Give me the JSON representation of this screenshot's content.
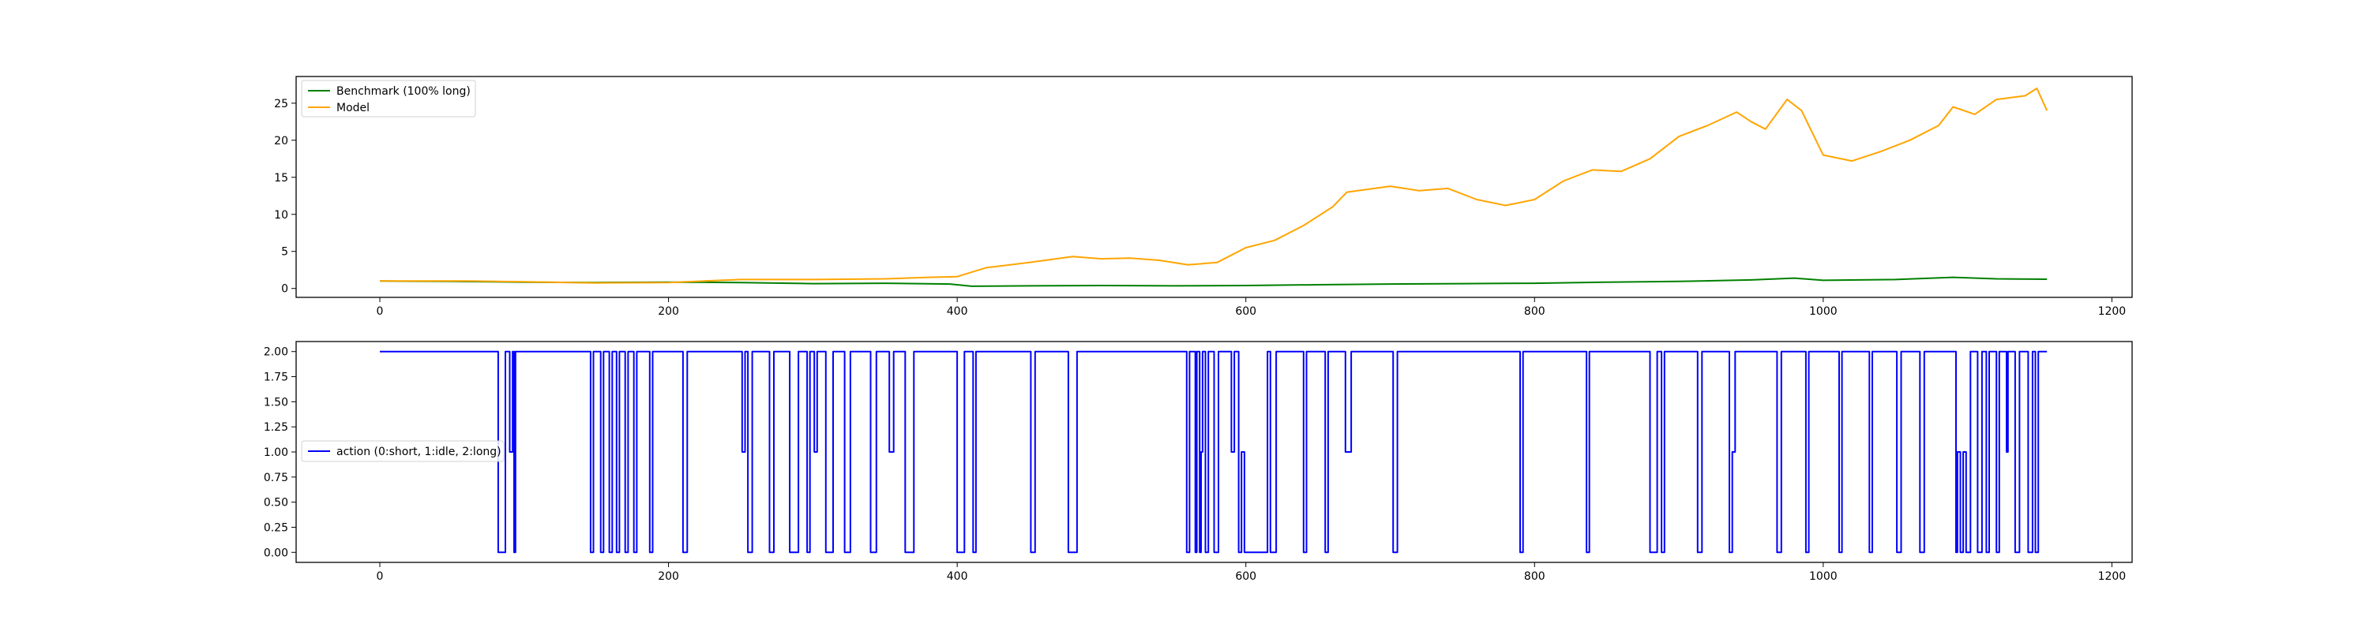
{
  "chart_data": [
    {
      "type": "line",
      "title": "",
      "xlabel": "",
      "ylabel": "",
      "xlim": [
        -58,
        1214
      ],
      "ylim": [
        -1.2,
        28.6
      ],
      "xticks": [
        0,
        200,
        400,
        600,
        800,
        1000,
        1200
      ],
      "xtick_labels": [
        "0",
        "200",
        "400",
        "600",
        "800",
        "1000",
        "1200"
      ],
      "yticks": [
        0,
        5,
        10,
        15,
        20,
        25
      ],
      "ytick_labels": [
        "0",
        "5",
        "10",
        "15",
        "20",
        "25"
      ],
      "legend_position": "top-left",
      "grid": false,
      "series": [
        {
          "name": "Benchmark (100% long)",
          "color": "#008000",
          "points": [
            [
              0,
              1.0
            ],
            [
              50,
              0.95
            ],
            [
              100,
              0.85
            ],
            [
              150,
              0.8
            ],
            [
              200,
              0.85
            ],
            [
              250,
              0.8
            ],
            [
              300,
              0.65
            ],
            [
              350,
              0.7
            ],
            [
              395,
              0.6
            ],
            [
              410,
              0.3
            ],
            [
              450,
              0.35
            ],
            [
              500,
              0.4
            ],
            [
              550,
              0.35
            ],
            [
              600,
              0.4
            ],
            [
              650,
              0.5
            ],
            [
              700,
              0.6
            ],
            [
              750,
              0.65
            ],
            [
              800,
              0.7
            ],
            [
              850,
              0.85
            ],
            [
              900,
              0.95
            ],
            [
              950,
              1.15
            ],
            [
              980,
              1.4
            ],
            [
              1000,
              1.1
            ],
            [
              1050,
              1.2
            ],
            [
              1090,
              1.5
            ],
            [
              1120,
              1.3
            ],
            [
              1155,
              1.25
            ]
          ]
        },
        {
          "name": "Model",
          "color": "#ffa500",
          "points": [
            [
              0,
              1.0
            ],
            [
              60,
              1.0
            ],
            [
              100,
              0.9
            ],
            [
              150,
              0.75
            ],
            [
              200,
              0.8
            ],
            [
              250,
              1.2
            ],
            [
              300,
              1.2
            ],
            [
              350,
              1.3
            ],
            [
              380,
              1.5
            ],
            [
              400,
              1.6
            ],
            [
              410,
              2.2
            ],
            [
              420,
              2.8
            ],
            [
              450,
              3.5
            ],
            [
              480,
              4.3
            ],
            [
              500,
              4.0
            ],
            [
              520,
              4.1
            ],
            [
              540,
              3.8
            ],
            [
              560,
              3.2
            ],
            [
              580,
              3.5
            ],
            [
              600,
              5.5
            ],
            [
              620,
              6.5
            ],
            [
              640,
              8.5
            ],
            [
              660,
              11.0
            ],
            [
              670,
              13.0
            ],
            [
              700,
              13.8
            ],
            [
              720,
              13.2
            ],
            [
              740,
              13.5
            ],
            [
              760,
              12.0
            ],
            [
              780,
              11.2
            ],
            [
              800,
              12.0
            ],
            [
              820,
              14.5
            ],
            [
              840,
              16.0
            ],
            [
              860,
              15.8
            ],
            [
              880,
              17.5
            ],
            [
              900,
              20.5
            ],
            [
              920,
              22.0
            ],
            [
              940,
              23.8
            ],
            [
              950,
              22.5
            ],
            [
              960,
              21.5
            ],
            [
              975,
              25.5
            ],
            [
              985,
              24.0
            ],
            [
              1000,
              18.0
            ],
            [
              1020,
              17.2
            ],
            [
              1040,
              18.5
            ],
            [
              1060,
              20.0
            ],
            [
              1080,
              22.0
            ],
            [
              1090,
              24.5
            ],
            [
              1105,
              23.5
            ],
            [
              1120,
              25.5
            ],
            [
              1140,
              26.0
            ],
            [
              1148,
              27.0
            ],
            [
              1155,
              24.0
            ]
          ]
        }
      ]
    },
    {
      "type": "line",
      "title": "",
      "xlabel": "",
      "ylabel": "",
      "xlim": [
        -58,
        1214
      ],
      "ylim": [
        -0.1,
        2.1
      ],
      "xticks": [
        0,
        200,
        400,
        600,
        800,
        1000,
        1200
      ],
      "xtick_labels": [
        "0",
        "200",
        "400",
        "600",
        "800",
        "1000",
        "1200"
      ],
      "yticks": [
        0.0,
        0.25,
        0.5,
        0.75,
        1.0,
        1.25,
        1.5,
        1.75,
        2.0
      ],
      "ytick_labels": [
        "0.00",
        "0.25",
        "0.50",
        "0.75",
        "1.00",
        "1.25",
        "1.50",
        "1.75",
        "2.00"
      ],
      "legend_position": "center-left",
      "grid": false,
      "series": [
        {
          "name": "action (0:short, 1:idle, 2:long)",
          "color": "#0000ff",
          "step_segments": [
            [
              0,
              2
            ],
            [
              82,
              0
            ],
            [
              87,
              2
            ],
            [
              90,
              1
            ],
            [
              92,
              2
            ],
            [
              93,
              0
            ],
            [
              94,
              2
            ],
            [
              146,
              0
            ],
            [
              148,
              2
            ],
            [
              153,
              0
            ],
            [
              155,
              2
            ],
            [
              159,
              0
            ],
            [
              161,
              2
            ],
            [
              164,
              0
            ],
            [
              166,
              2
            ],
            [
              170,
              0
            ],
            [
              172,
              2
            ],
            [
              176,
              0
            ],
            [
              178,
              2
            ],
            [
              187,
              0
            ],
            [
              189,
              2
            ],
            [
              210,
              0
            ],
            [
              213,
              2
            ],
            [
              251,
              1
            ],
            [
              253,
              2
            ],
            [
              255,
              0
            ],
            [
              258,
              2
            ],
            [
              270,
              0
            ],
            [
              273,
              2
            ],
            [
              284,
              0
            ],
            [
              290,
              2
            ],
            [
              296,
              0
            ],
            [
              298,
              2
            ],
            [
              301,
              1
            ],
            [
              303,
              2
            ],
            [
              309,
              0
            ],
            [
              314,
              2
            ],
            [
              322,
              0
            ],
            [
              326,
              2
            ],
            [
              340,
              0
            ],
            [
              344,
              2
            ],
            [
              353,
              1
            ],
            [
              356,
              2
            ],
            [
              364,
              0
            ],
            [
              370,
              2
            ],
            [
              400,
              0
            ],
            [
              405,
              2
            ],
            [
              411,
              0
            ],
            [
              413,
              2
            ],
            [
              451,
              0
            ],
            [
              454,
              2
            ],
            [
              477,
              0
            ],
            [
              483,
              2
            ],
            [
              559,
              0
            ],
            [
              561,
              2
            ],
            [
              565,
              0
            ],
            [
              566,
              2
            ],
            [
              568,
              0
            ],
            [
              569,
              1
            ],
            [
              570,
              2
            ],
            [
              572,
              0
            ],
            [
              574,
              2
            ],
            [
              578,
              0
            ],
            [
              581,
              2
            ],
            [
              590,
              1
            ],
            [
              592,
              2
            ],
            [
              595,
              0
            ],
            [
              597,
              1
            ],
            [
              599,
              0
            ],
            [
              615,
              2
            ],
            [
              617,
              0
            ],
            [
              621,
              2
            ],
            [
              640,
              0
            ],
            [
              642,
              2
            ],
            [
              655,
              0
            ],
            [
              657,
              2
            ],
            [
              669,
              1
            ],
            [
              673,
              2
            ],
            [
              702,
              0
            ],
            [
              705,
              2
            ],
            [
              790,
              0
            ],
            [
              792,
              2
            ],
            [
              836,
              0
            ],
            [
              838,
              2
            ],
            [
              880,
              0
            ],
            [
              885,
              2
            ],
            [
              888,
              0
            ],
            [
              890,
              2
            ],
            [
              913,
              0
            ],
            [
              916,
              2
            ],
            [
              935,
              0
            ],
            [
              937,
              1
            ],
            [
              939,
              2
            ],
            [
              968,
              0
            ],
            [
              971,
              2
            ],
            [
              988,
              0
            ],
            [
              990,
              2
            ],
            [
              1011,
              0
            ],
            [
              1013,
              2
            ],
            [
              1032,
              0
            ],
            [
              1034,
              2
            ],
            [
              1051,
              0
            ],
            [
              1054,
              2
            ],
            [
              1067,
              0
            ],
            [
              1070,
              2
            ],
            [
              1092,
              0
            ],
            [
              1093,
              1
            ],
            [
              1095,
              0
            ],
            [
              1097,
              1
            ],
            [
              1099,
              0
            ],
            [
              1102,
              2
            ],
            [
              1107,
              0
            ],
            [
              1110,
              2
            ],
            [
              1113,
              0
            ],
            [
              1115,
              2
            ],
            [
              1120,
              0
            ],
            [
              1122,
              2
            ],
            [
              1127,
              1
            ],
            [
              1128,
              2
            ],
            [
              1133,
              0
            ],
            [
              1136,
              2
            ],
            [
              1142,
              0
            ],
            [
              1145,
              2
            ],
            [
              1147,
              0
            ],
            [
              1149,
              2
            ],
            [
              1155,
              2
            ]
          ]
        }
      ]
    }
  ]
}
